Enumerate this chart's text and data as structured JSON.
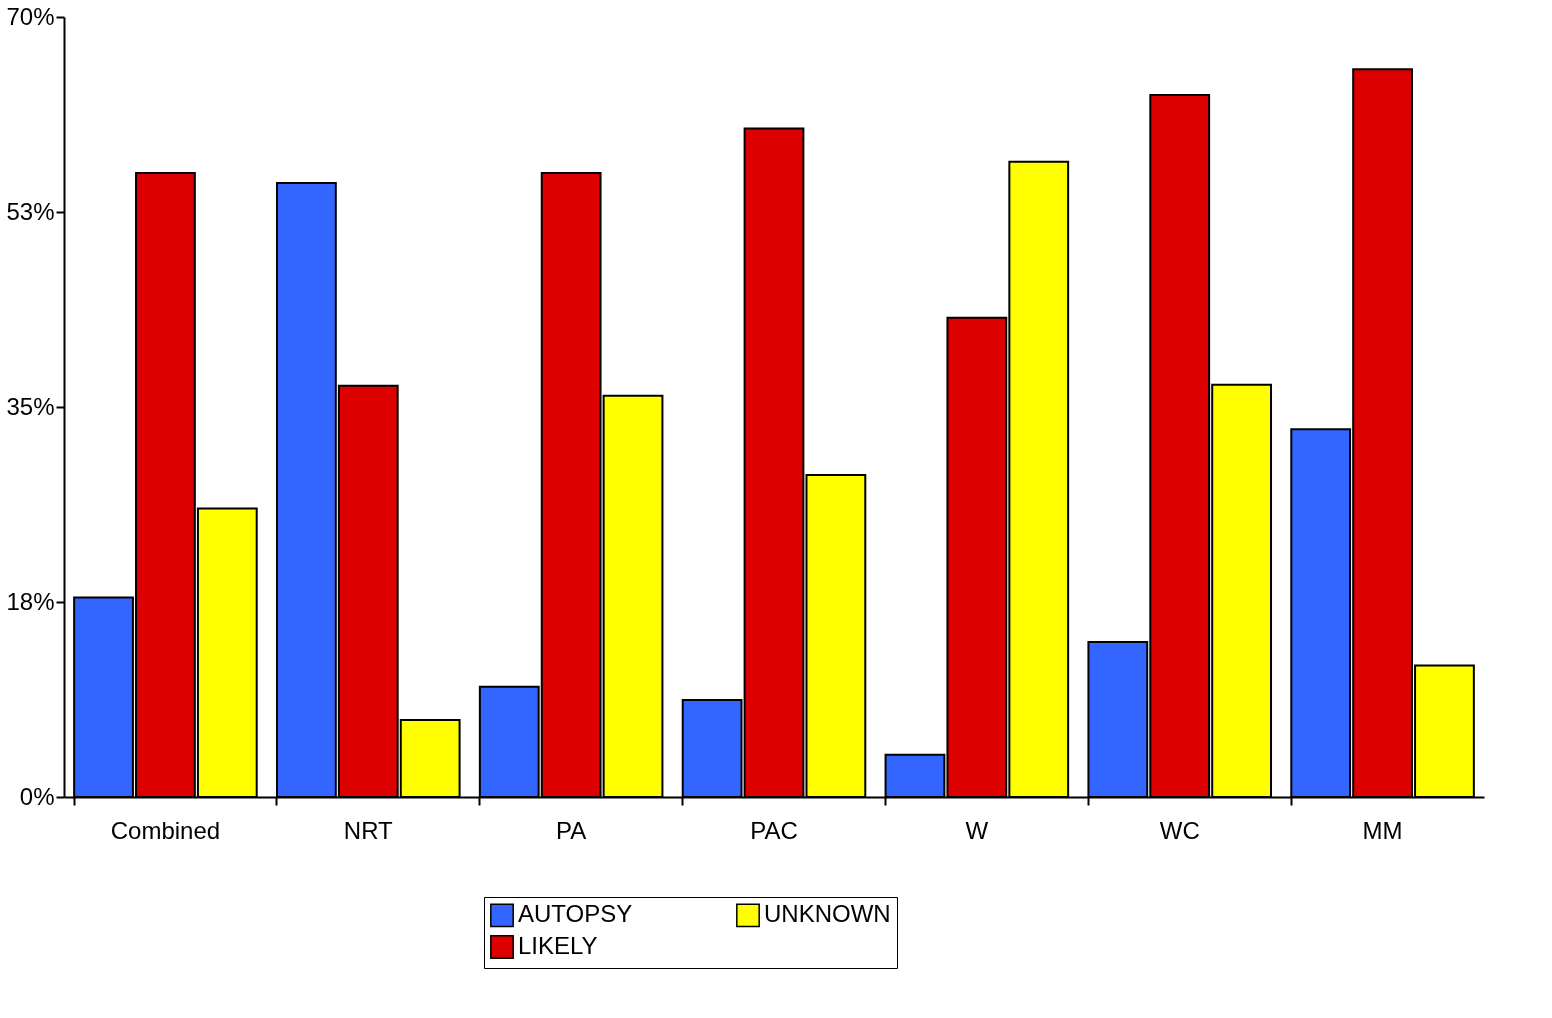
{
  "chart_data": {
    "type": "bar",
    "categories": [
      "Combined",
      "NRT",
      "PA",
      "PAC",
      "W",
      "WC",
      "MM"
    ],
    "series": [
      {
        "name": "AUTOPSY",
        "color": "#3366ff",
        "values": [
          17.9,
          55.1,
          9.9,
          8.7,
          3.8,
          13.9,
          33.0
        ]
      },
      {
        "name": "LIKELY",
        "color": "#dd0000",
        "values": [
          56.0,
          36.9,
          56.0,
          60.0,
          43.0,
          63.0,
          65.3
        ]
      },
      {
        "name": "UNKNOWN",
        "color": "#ffff00",
        "values": [
          25.9,
          6.9,
          36.0,
          28.9,
          57.0,
          37.0,
          11.8
        ]
      }
    ],
    "ylim": [
      0,
      70
    ],
    "yticks": [
      {
        "value": 0,
        "label": "0%"
      },
      {
        "value": 17.5,
        "label": "18%"
      },
      {
        "value": 35,
        "label": "35%"
      },
      {
        "value": 52.5,
        "label": "53%"
      },
      {
        "value": 70,
        "label": "70%"
      }
    ],
    "grid": false,
    "legend": "bottom"
  }
}
